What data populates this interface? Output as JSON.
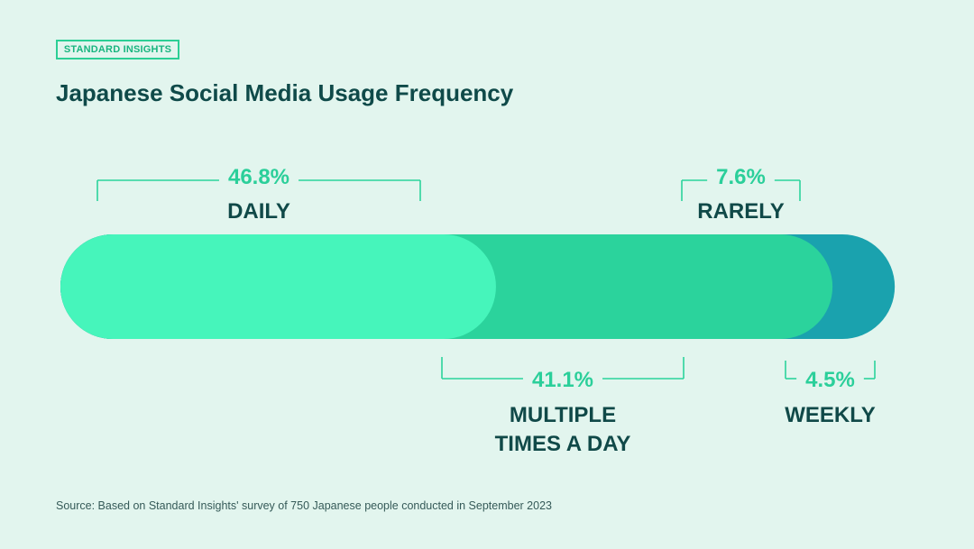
{
  "badge": "STANDARD INSIGHTS",
  "title": "Japanese Social Media Usage Frequency",
  "source": "Source: Based on Standard Insights' survey of 750 Japanese people conducted in September 2023",
  "chart_data": {
    "type": "bar",
    "orientation": "horizontal-stacked",
    "title": "Japanese Social Media Usage Frequency",
    "categories": [
      "DAILY",
      "MULTIPLE TIMES A DAY",
      "RARELY",
      "WEEKLY"
    ],
    "values": [
      46.8,
      41.1,
      7.6,
      4.5
    ],
    "value_labels": [
      "46.8%",
      "41.1%",
      "7.6%",
      "4.5%"
    ],
    "label_lines": [
      [
        "DAILY"
      ],
      [
        "MULTIPLE",
        "TIMES A DAY"
      ],
      [
        "RARELY"
      ],
      [
        "WEEKLY"
      ]
    ],
    "label_position": [
      "top",
      "bottom",
      "top",
      "bottom"
    ],
    "colors": [
      "#46f5bb",
      "#2bd39c",
      "#1aa2ae",
      "#13787f"
    ],
    "unit": "%"
  }
}
